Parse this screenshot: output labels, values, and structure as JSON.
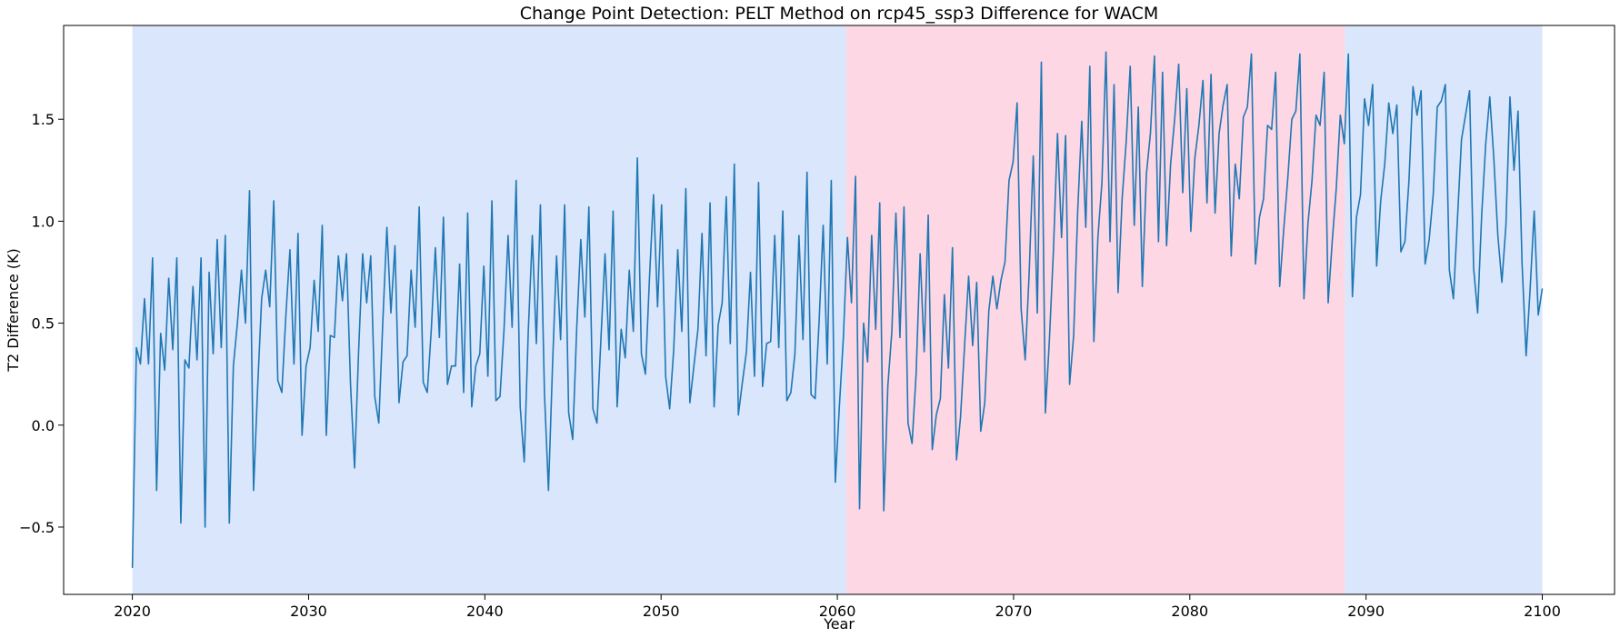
{
  "chart_data": {
    "type": "line",
    "title": "Change Point Detection: PELT Method on rcp45_ssp3 Difference for WACM",
    "xlabel": "Year",
    "ylabel": "T2 Difference (K)",
    "xlim": [
      2016.1,
      2104.1
    ],
    "ylim": [
      -0.83,
      1.96
    ],
    "x_ticks": [
      2020,
      2030,
      2040,
      2050,
      2060,
      2070,
      2080,
      2090,
      2100
    ],
    "y_ticks": [
      -0.5,
      0.0,
      0.5,
      1.0,
      1.5
    ],
    "x_tick_labels": [
      "2020",
      "2030",
      "2040",
      "2050",
      "2060",
      "2070",
      "2080",
      "2090",
      "2100"
    ],
    "y_tick_labels": [
      "−0.5",
      "0.0",
      "0.5",
      "1.0",
      "1.5"
    ],
    "segments": [
      {
        "start": 2020.0,
        "end": 2060.5,
        "color": "#dae6fb"
      },
      {
        "start": 2060.5,
        "end": 2088.8,
        "color": "#fdd7e3"
      },
      {
        "start": 2088.8,
        "end": 2100.0,
        "color": "#dae6fb"
      }
    ],
    "series": [
      {
        "name": "T2 Difference",
        "color": "#1f77b4",
        "x_start": 2020.0,
        "x_step": 0.0833333,
        "values": [
          -0.7,
          0.38,
          0.3,
          0.62,
          0.3,
          0.82,
          -0.32,
          0.45,
          0.27,
          0.72,
          0.37,
          0.82,
          -0.48,
          0.32,
          0.28,
          0.68,
          0.32,
          0.82,
          -0.5,
          0.75,
          0.35,
          0.91,
          0.38,
          0.93,
          -0.48,
          0.29,
          0.5,
          0.76,
          0.5,
          1.15,
          -0.32,
          0.18,
          0.62,
          0.76,
          0.58,
          1.1,
          0.22,
          0.16,
          0.54,
          0.86,
          0.3,
          0.94,
          -0.05,
          0.29,
          0.38,
          0.71,
          0.46,
          0.98,
          -0.05,
          0.44,
          0.43,
          0.83,
          0.61,
          0.84,
          0.2,
          -0.21,
          0.36,
          0.84,
          0.6,
          0.83,
          0.14,
          0.01,
          0.51,
          0.97,
          0.55,
          0.88,
          0.11,
          0.31,
          0.34,
          0.76,
          0.48,
          1.07,
          0.21,
          0.16,
          0.47,
          0.87,
          0.43,
          1.02,
          0.2,
          0.29,
          0.29,
          0.79,
          0.16,
          1.04,
          0.09,
          0.29,
          0.35,
          0.78,
          0.24,
          1.1,
          0.12,
          0.14,
          0.47,
          0.93,
          0.48,
          1.2,
          0.09,
          -0.18,
          0.46,
          0.93,
          0.4,
          1.08,
          0.16,
          -0.32,
          0.29,
          0.83,
          0.42,
          1.08,
          0.06,
          -0.07,
          0.48,
          0.91,
          0.53,
          1.07,
          0.08,
          0.01,
          0.43,
          0.84,
          0.37,
          1.05,
          0.09,
          0.47,
          0.33,
          0.76,
          0.46,
          1.31,
          0.35,
          0.25,
          0.72,
          1.13,
          0.58,
          1.08,
          0.24,
          0.08,
          0.37,
          0.86,
          0.46,
          1.16,
          0.11,
          0.29,
          0.47,
          0.94,
          0.34,
          1.09,
          0.09,
          0.49,
          0.6,
          1.12,
          0.4,
          1.28,
          0.05,
          0.21,
          0.36,
          0.75,
          0.24,
          1.19,
          0.19,
          0.4,
          0.41,
          0.93,
          0.38,
          1.05,
          0.12,
          0.16,
          0.35,
          0.93,
          0.42,
          1.24,
          0.15,
          0.13,
          0.51,
          0.98,
          0.3,
          1.2,
          -0.28,
          0.09,
          0.43,
          0.92,
          0.6,
          1.22,
          -0.41,
          0.5,
          0.31,
          0.93,
          0.47,
          1.09,
          -0.42,
          0.19,
          0.46,
          1.04,
          0.43,
          1.07,
          0.01,
          -0.09,
          0.25,
          0.84,
          0.36,
          1.03,
          -0.12,
          0.05,
          0.13,
          0.64,
          0.28,
          0.87,
          -0.17,
          0.04,
          0.39,
          0.73,
          0.39,
          0.7,
          -0.03,
          0.11,
          0.56,
          0.73,
          0.57,
          0.71,
          0.8,
          1.2,
          1.29,
          1.58,
          0.57,
          0.32,
          0.75,
          1.32,
          0.55,
          1.78,
          0.06,
          0.42,
          0.86,
          1.43,
          0.92,
          1.42,
          0.2,
          0.44,
          1.05,
          1.49,
          0.97,
          1.76,
          0.41,
          0.92,
          1.19,
          1.83,
          0.9,
          1.67,
          0.65,
          1.11,
          1.39,
          1.76,
          0.98,
          1.56,
          0.68,
          1.23,
          1.43,
          1.81,
          0.9,
          1.73,
          0.88,
          1.28,
          1.5,
          1.77,
          1.14,
          1.65,
          0.95,
          1.31,
          1.47,
          1.69,
          1.09,
          1.72,
          1.04,
          1.43,
          1.57,
          1.67,
          0.83,
          1.28,
          1.11,
          1.51,
          1.56,
          1.82,
          0.79,
          1.02,
          1.11,
          1.47,
          1.45,
          1.73,
          0.68,
          0.96,
          1.21,
          1.5,
          1.54,
          1.82,
          0.62,
          0.99,
          1.2,
          1.52,
          1.47,
          1.73,
          0.6,
          0.9,
          1.16,
          1.52,
          1.38,
          1.82,
          0.63,
          1.02,
          1.13,
          1.6,
          1.47,
          1.67,
          0.78,
          1.1,
          1.28,
          1.58,
          1.43,
          1.57,
          0.85,
          0.9,
          1.2,
          1.66,
          1.52,
          1.64,
          0.79,
          0.91,
          1.13,
          1.56,
          1.59,
          1.67,
          0.76,
          0.62,
          1.01,
          1.4,
          1.52,
          1.64,
          0.77,
          0.55,
          1.03,
          1.38,
          1.61,
          1.31,
          0.93,
          0.7,
          0.98,
          1.61,
          1.25,
          1.54,
          0.79,
          0.34,
          0.67,
          1.05,
          0.54,
          0.67
        ]
      }
    ]
  }
}
